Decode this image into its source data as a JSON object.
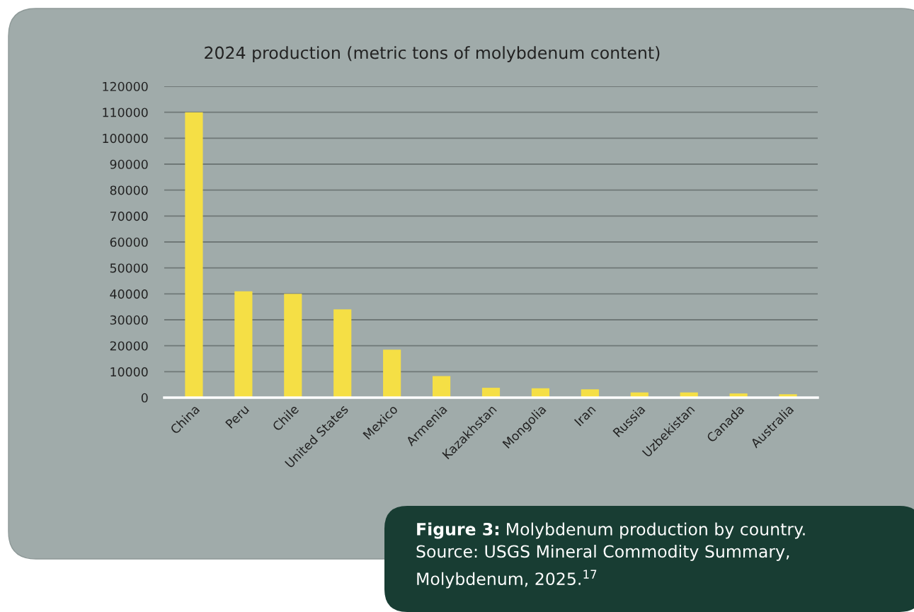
{
  "chart_data": {
    "type": "bar",
    "title": "2024 production (metric tons of molybdenum content)",
    "categories": [
      "China",
      "Peru",
      "Chile",
      "United States",
      "Mexico",
      "Armenia",
      "Kazakhstan",
      "Mongolia",
      "Iran",
      "Russia",
      "Uzbekistan",
      "Canada",
      "Australia"
    ],
    "values": [
      110000,
      41000,
      40000,
      34000,
      18500,
      8300,
      3800,
      3600,
      3200,
      2000,
      2000,
      1600,
      1300
    ],
    "color": "#f5df45",
    "ylim": [
      0,
      120000
    ],
    "yticks": [
      0,
      10000,
      20000,
      30000,
      40000,
      50000,
      60000,
      70000,
      80000,
      90000,
      100000,
      110000,
      120000
    ],
    "grid": "y",
    "annotations": [
      "Figure 3:",
      "Molybdenum production by country.",
      "Source: USGS Mineral Commodity Summary,\nMolybdenum, 2025.$^{17}$"
    ]
  }
}
